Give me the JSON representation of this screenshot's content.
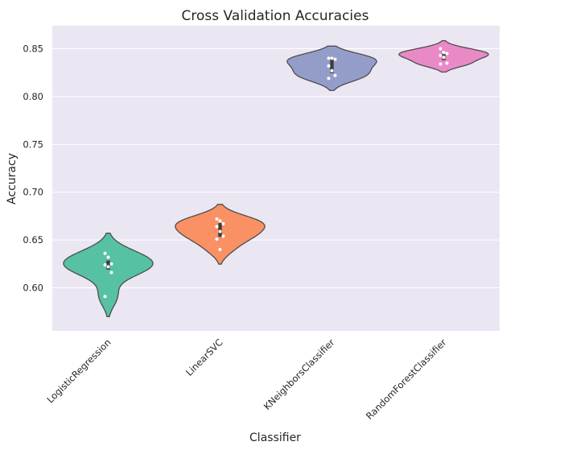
{
  "chart_data": {
    "type": "violin",
    "title": "Cross Validation Accuracies",
    "xlabel": "Classifier",
    "ylabel": "Accuracy",
    "ylim": [
      0.555,
      0.874
    ],
    "yticks": [
      "0.60",
      "0.65",
      "0.70",
      "0.75",
      "0.80",
      "0.85"
    ],
    "grid": true,
    "background": "#eae6f2",
    "categories": [
      "LogisticRegression",
      "LinearSVC",
      "KNeighborsClassifier",
      "RandomForestClassifier"
    ],
    "series": [
      {
        "category": "LogisticRegression",
        "color": "#57c1a3",
        "points": [
          0.636,
          0.632,
          0.625,
          0.624,
          0.622,
          0.616,
          0.591
        ]
      },
      {
        "category": "LinearSVC",
        "color": "#f99165",
        "points": [
          0.672,
          0.67,
          0.667,
          0.664,
          0.659,
          0.654,
          0.651,
          0.64
        ]
      },
      {
        "category": "KNeighborsClassifier",
        "color": "#949dca",
        "points": [
          0.84,
          0.84,
          0.839,
          0.832,
          0.827,
          0.822,
          0.819
        ]
      },
      {
        "category": "RandomForestClassifier",
        "color": "#e98ac6",
        "points": [
          0.85,
          0.846,
          0.845,
          0.843,
          0.841,
          0.835,
          0.834
        ]
      }
    ]
  }
}
